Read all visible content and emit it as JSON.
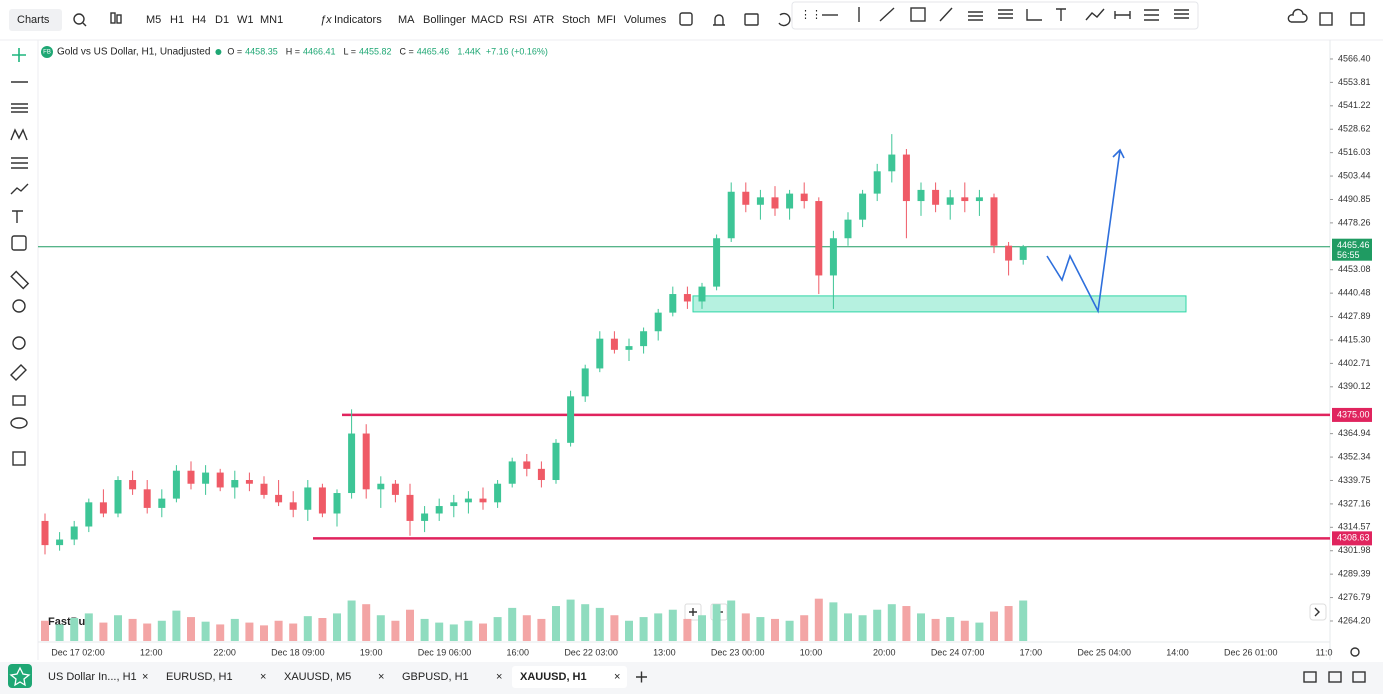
{
  "toolbar": {
    "menu": "Charts",
    "timeframes": [
      "M5",
      "H1",
      "H4",
      "D1",
      "W1",
      "MN1"
    ],
    "active_timeframe": 1,
    "indicators_button": "Indicators",
    "indicators": [
      "MA",
      "Bollinger",
      "MACD",
      "RSI",
      "ATR",
      "Stoch",
      "MFI",
      "Volumes"
    ]
  },
  "tabs": [
    {
      "label": "US Dollar In..., H1"
    },
    {
      "label": "EURUSD, H1"
    },
    {
      "label": "XAUUSD, M5"
    },
    {
      "label": "GBPUSD, H1"
    },
    {
      "label": "XAUUSD, H1",
      "active": true
    }
  ],
  "chart_data": {
    "type": "candlestick",
    "badge": "FB",
    "title": "Gold vs US Dollar, H1, Unadjusted",
    "ohlc_header": [
      {
        "label": "O =",
        "value": 4458.35
      },
      {
        "label": "H =",
        "value": 4466.41
      },
      {
        "label": "L =",
        "value": 4455.82
      },
      {
        "label": "C =",
        "value": 4465.46
      }
    ],
    "volume_label": "1.44K",
    "change_label": "+7.16 (+0.16%)",
    "watermark": "FastBull",
    "up_color": "#3dc596",
    "down_color": "#ef5a66",
    "up_volume_color": "#8fdcbf",
    "down_volume_color": "#f3a5a5",
    "ylim": [
      4252.9,
      4576.6
    ],
    "volume_ylim": [
      0,
      50
    ],
    "yticks": [
      {
        "value": 4566.4,
        "label": "4566.40"
      },
      4553.81,
      4541.22,
      4528.62,
      4516.03,
      4503.44,
      4490.85,
      4478.26,
      4453.08,
      4440.48,
      4427.89,
      {
        "value": 4415.3,
        "label": "4415.30"
      },
      4402.71,
      4390.12,
      4364.94,
      4352.34,
      4339.75,
      4327.16,
      4314.57,
      4301.98,
      4289.39,
      4276.79,
      {
        "value": 4264.2,
        "label": "4264.20"
      }
    ],
    "xticks": [
      "Dec 17 02:00",
      "12:00",
      "22:00",
      "Dec 18 09:00",
      "19:00",
      "Dec 19 06:00",
      "16:00",
      "Dec 22 03:00",
      "13:00",
      "Dec 23 00:00",
      "10:00",
      "20:00",
      "Dec 24 07:00",
      "17:00",
      "Dec 25 04:00",
      "14:00",
      "Dec 26 01:00",
      "11:0"
    ],
    "current_price": {
      "value": 4465.46,
      "label": "4465.46",
      "countdown": "56:55",
      "color": "#1f9b62"
    },
    "levels": [
      {
        "value": 4375,
        "label": "4375.00",
        "color": "#e0245e"
      },
      {
        "value": 4308.63,
        "label": "4308.63",
        "color": "#e0245e"
      }
    ],
    "zone": {
      "low": 4430.4,
      "high": 4439.0,
      "color": "#2fd6a6"
    },
    "candles": [
      [
        4318,
        4322,
        4300,
        4305
      ],
      [
        4305,
        4312,
        4302,
        4308
      ],
      [
        4308,
        4318,
        4305,
        4315
      ],
      [
        4315,
        4330,
        4312,
        4328
      ],
      [
        4328,
        4335,
        4320,
        4322
      ],
      [
        4322,
        4342,
        4320,
        4340
      ],
      [
        4340,
        4345,
        4332,
        4335
      ],
      [
        4335,
        4340,
        4322,
        4325
      ],
      [
        4325,
        4335,
        4320,
        4330
      ],
      [
        4330,
        4348,
        4328,
        4345
      ],
      [
        4345,
        4350,
        4335,
        4338
      ],
      [
        4338,
        4348,
        4332,
        4344
      ],
      [
        4344,
        4346,
        4334,
        4336
      ],
      [
        4336,
        4345,
        4330,
        4340
      ],
      [
        4340,
        4344,
        4334,
        4338
      ],
      [
        4338,
        4342,
        4330,
        4332
      ],
      [
        4332,
        4340,
        4326,
        4328
      ],
      [
        4328,
        4334,
        4320,
        4324
      ],
      [
        4324,
        4340,
        4318,
        4336
      ],
      [
        4336,
        4338,
        4320,
        4322
      ],
      [
        4322,
        4335,
        4315,
        4333
      ],
      [
        4333,
        4378,
        4330,
        4365
      ],
      [
        4365,
        4370,
        4330,
        4335
      ],
      [
        4335,
        4342,
        4325,
        4338
      ],
      [
        4338,
        4340,
        4328,
        4332
      ],
      [
        4332,
        4338,
        4310,
        4318
      ],
      [
        4318,
        4326,
        4312,
        4322
      ],
      [
        4322,
        4330,
        4318,
        4326
      ],
      [
        4326,
        4332,
        4320,
        4328
      ],
      [
        4328,
        4334,
        4322,
        4330
      ],
      [
        4330,
        4336,
        4324,
        4328
      ],
      [
        4328,
        4340,
        4325,
        4338
      ],
      [
        4338,
        4352,
        4336,
        4350
      ],
      [
        4350,
        4354,
        4342,
        4346
      ],
      [
        4346,
        4350,
        4336,
        4340
      ],
      [
        4340,
        4362,
        4338,
        4360
      ],
      [
        4360,
        4388,
        4358,
        4385
      ],
      [
        4385,
        4402,
        4382,
        4400
      ],
      [
        4400,
        4420,
        4398,
        4416
      ],
      [
        4416,
        4420,
        4408,
        4410
      ],
      [
        4410,
        4416,
        4404,
        4412
      ],
      [
        4412,
        4422,
        4408,
        4420
      ],
      [
        4420,
        4432,
        4415,
        4430
      ],
      [
        4430,
        4444,
        4428,
        4440
      ],
      [
        4440,
        4444,
        4432,
        4436
      ],
      [
        4436,
        4446,
        4432,
        4444
      ],
      [
        4444,
        4472,
        4442,
        4470
      ],
      [
        4470,
        4500,
        4468,
        4495
      ],
      [
        4495,
        4500,
        4484,
        4488
      ],
      [
        4488,
        4496,
        4480,
        4492
      ],
      [
        4492,
        4498,
        4482,
        4486
      ],
      [
        4486,
        4496,
        4480,
        4494
      ],
      [
        4494,
        4500,
        4486,
        4490
      ],
      [
        4490,
        4492,
        4440,
        4450
      ],
      [
        4450,
        4474,
        4432,
        4470
      ],
      [
        4470,
        4484,
        4466,
        4480
      ],
      [
        4480,
        4496,
        4476,
        4494
      ],
      [
        4494,
        4510,
        4490,
        4506
      ],
      [
        4506,
        4526,
        4500,
        4515
      ],
      [
        4515,
        4518,
        4470,
        4490
      ],
      [
        4490,
        4500,
        4482,
        4496
      ],
      [
        4496,
        4500,
        4484,
        4488
      ],
      [
        4488,
        4496,
        4480,
        4492
      ],
      [
        4492,
        4500,
        4484,
        4490
      ],
      [
        4490,
        4496,
        4482,
        4492
      ],
      [
        4492,
        4494,
        4462,
        4466
      ],
      [
        4466,
        4468,
        4450,
        4458
      ],
      [
        4458.35,
        4466.41,
        4455.82,
        4465.46
      ]
    ],
    "volumes": [
      22,
      18,
      25,
      30,
      20,
      28,
      24,
      19,
      22,
      33,
      26,
      21,
      18,
      24,
      20,
      17,
      22,
      19,
      27,
      25,
      30,
      44,
      40,
      28,
      22,
      34,
      24,
      20,
      18,
      22,
      19,
      26,
      36,
      28,
      24,
      38,
      45,
      40,
      36,
      28,
      22,
      26,
      30,
      34,
      24,
      28,
      40,
      44,
      30,
      26,
      24,
      22,
      28,
      46,
      42,
      30,
      28,
      34,
      40,
      38,
      30,
      24,
      26,
      22,
      20,
      32,
      38,
      44
    ]
  }
}
